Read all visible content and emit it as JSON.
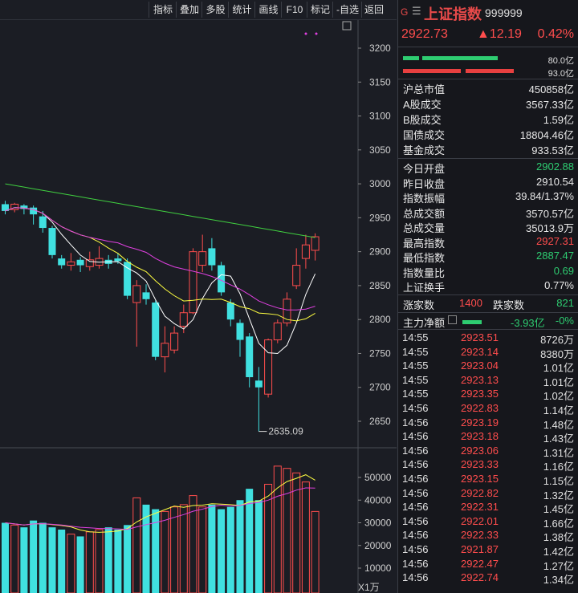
{
  "toolbar": {
    "buttons": [
      "指标",
      "叠加",
      "多股",
      "统计",
      "画线",
      "F10",
      "标记",
      "-自选",
      "返回"
    ]
  },
  "header": {
    "g_label": "G",
    "menu_icon": "menu-icon",
    "name": "上证指数",
    "code": "999999"
  },
  "quote": {
    "price": "2922.73",
    "change": "▲12.19",
    "change_pct": "0.42%"
  },
  "ratio_bars": {
    "green_pct_label": "80.0亿",
    "red_pct_label": "93.0亿"
  },
  "market_stats": [
    {
      "k": "沪总市值",
      "v": "450858亿"
    },
    {
      "k": "A股成交",
      "v": "3567.33亿"
    },
    {
      "k": "B股成交",
      "v": "1.59亿"
    },
    {
      "k": "国债成交",
      "v": "18804.46亿"
    },
    {
      "k": "基金成交",
      "v": "933.53亿"
    }
  ],
  "day_stats": [
    {
      "k": "今日开盘",
      "v": "2902.88",
      "color": "green"
    },
    {
      "k": "昨日收盘",
      "v": "2910.54",
      "color": "white"
    },
    {
      "k": "指数振幅",
      "v": "39.84/1.37%",
      "color": "white"
    },
    {
      "k": "总成交额",
      "v": "3570.57亿",
      "color": "white"
    },
    {
      "k": "总成交量",
      "v": "35013.9万",
      "color": "white"
    },
    {
      "k": "最高指数",
      "v": "2927.31",
      "color": "red"
    },
    {
      "k": "最低指数",
      "v": "2887.47",
      "color": "green"
    },
    {
      "k": "指数量比",
      "v": "0.69",
      "color": "green"
    },
    {
      "k": "上证换手",
      "v": "0.77%",
      "color": "white"
    }
  ],
  "breadth": {
    "up_label": "涨家数",
    "up_value": "1400",
    "down_label": "跌家数",
    "down_value": "821"
  },
  "main_flow": {
    "label": "主力净额",
    "value": "-3.93亿",
    "pct": "-0%"
  },
  "trades": [
    {
      "t": "14:55",
      "p": "2923.51",
      "a": "8726万"
    },
    {
      "t": "14:55",
      "p": "2923.14",
      "a": "8380万"
    },
    {
      "t": "14:55",
      "p": "2923.04",
      "a": "1.01亿"
    },
    {
      "t": "14:55",
      "p": "2923.13",
      "a": "1.01亿"
    },
    {
      "t": "14:55",
      "p": "2923.35",
      "a": "1.02亿"
    },
    {
      "t": "14:56",
      "p": "2922.83",
      "a": "1.14亿"
    },
    {
      "t": "14:56",
      "p": "2923.19",
      "a": "1.48亿"
    },
    {
      "t": "14:56",
      "p": "2923.18",
      "a": "1.43亿"
    },
    {
      "t": "14:56",
      "p": "2923.06",
      "a": "1.31亿"
    },
    {
      "t": "14:56",
      "p": "2923.33",
      "a": "1.16亿"
    },
    {
      "t": "14:56",
      "p": "2923.15",
      "a": "1.15亿"
    },
    {
      "t": "14:56",
      "p": "2922.82",
      "a": "1.32亿"
    },
    {
      "t": "14:56",
      "p": "2922.31",
      "a": "1.45亿"
    },
    {
      "t": "14:56",
      "p": "2922.01",
      "a": "1.66亿"
    },
    {
      "t": "14:56",
      "p": "2922.33",
      "a": "1.38亿"
    },
    {
      "t": "14:56",
      "p": "2921.87",
      "a": "1.42亿"
    },
    {
      "t": "14:56",
      "p": "2922.47",
      "a": "1.27亿"
    },
    {
      "t": "14:56",
      "p": "2922.74",
      "a": "1.34亿"
    }
  ],
  "colors": {
    "up": "#ff4d4d",
    "down": "#40e0e0",
    "ma_white": "#ffffff",
    "ma_yellow": "#ffff40",
    "ma_magenta": "#e040e0",
    "ma_green": "#40d040"
  },
  "chart_data": {
    "type": "candlestick",
    "price_axis": {
      "ticks": [
        3200,
        3150,
        3100,
        3050,
        3000,
        2950,
        2900,
        2850,
        2800,
        2750,
        2700,
        2650
      ],
      "range": [
        2620,
        3230
      ]
    },
    "volume_axis": {
      "ticks": [
        50000,
        40000,
        30000,
        20000,
        10000
      ],
      "unit_label": "X1万",
      "range": [
        0,
        60000
      ]
    },
    "low_annotation": "2635.09",
    "candles": [
      {
        "o": 2970,
        "c": 2960,
        "h": 2975,
        "l": 2955
      },
      {
        "o": 2962,
        "c": 2970,
        "h": 2972,
        "l": 2958
      },
      {
        "o": 2968,
        "c": 2963,
        "h": 2970,
        "l": 2955
      },
      {
        "o": 2965,
        "c": 2955,
        "h": 2968,
        "l": 2940
      },
      {
        "o": 2952,
        "c": 2935,
        "h": 2960,
        "l": 2928
      },
      {
        "o": 2935,
        "c": 2895,
        "h": 2938,
        "l": 2890
      },
      {
        "o": 2890,
        "c": 2880,
        "h": 2895,
        "l": 2875
      },
      {
        "o": 2880,
        "c": 2885,
        "h": 2898,
        "l": 2872
      },
      {
        "o": 2888,
        "c": 2880,
        "h": 2892,
        "l": 2870
      },
      {
        "o": 2878,
        "c": 2888,
        "h": 2900,
        "l": 2872
      },
      {
        "o": 2880,
        "c": 2890,
        "h": 2908,
        "l": 2875
      },
      {
        "o": 2888,
        "c": 2882,
        "h": 2895,
        "l": 2875
      },
      {
        "o": 2890,
        "c": 2886,
        "h": 2898,
        "l": 2882
      },
      {
        "o": 2885,
        "c": 2835,
        "h": 2890,
        "l": 2830
      },
      {
        "o": 2825,
        "c": 2850,
        "h": 2858,
        "l": 2760
      },
      {
        "o": 2840,
        "c": 2830,
        "h": 2852,
        "l": 2822
      },
      {
        "o": 2825,
        "c": 2745,
        "h": 2828,
        "l": 2740
      },
      {
        "o": 2745,
        "c": 2765,
        "h": 2790,
        "l": 2722
      },
      {
        "o": 2755,
        "c": 2780,
        "h": 2790,
        "l": 2750
      },
      {
        "o": 2790,
        "c": 2810,
        "h": 2822,
        "l": 2780
      },
      {
        "o": 2810,
        "c": 2900,
        "h": 2905,
        "l": 2808
      },
      {
        "o": 2880,
        "c": 2900,
        "h": 2925,
        "l": 2870
      },
      {
        "o": 2905,
        "c": 2880,
        "h": 2920,
        "l": 2872
      },
      {
        "o": 2880,
        "c": 2840,
        "h": 2885,
        "l": 2835
      },
      {
        "o": 2825,
        "c": 2800,
        "h": 2830,
        "l": 2790
      },
      {
        "o": 2795,
        "c": 2770,
        "h": 2800,
        "l": 2745
      },
      {
        "o": 2775,
        "c": 2715,
        "h": 2780,
        "l": 2700
      },
      {
        "o": 2710,
        "c": 2700,
        "h": 2730,
        "l": 2635
      },
      {
        "o": 2690,
        "c": 2770,
        "h": 2772,
        "l": 2685
      },
      {
        "o": 2770,
        "c": 2795,
        "h": 2800,
        "l": 2765
      },
      {
        "o": 2795,
        "c": 2830,
        "h": 2840,
        "l": 2790
      },
      {
        "o": 2850,
        "c": 2880,
        "h": 2905,
        "l": 2845
      },
      {
        "o": 2890,
        "c": 2910,
        "h": 2925,
        "l": 2875
      },
      {
        "o": 2902,
        "c": 2922,
        "h": 2927,
        "l": 2887
      }
    ],
    "volumes": [
      30000,
      29000,
      28000,
      31000,
      30000,
      28000,
      27000,
      25000,
      24000,
      26000,
      27000,
      28000,
      27000,
      29000,
      41000,
      38000,
      36000,
      35000,
      37000,
      38000,
      42000,
      37000,
      38000,
      36000,
      37000,
      40000,
      45000,
      40000,
      47000,
      55000,
      54000,
      52000,
      48000,
      35000
    ]
  }
}
